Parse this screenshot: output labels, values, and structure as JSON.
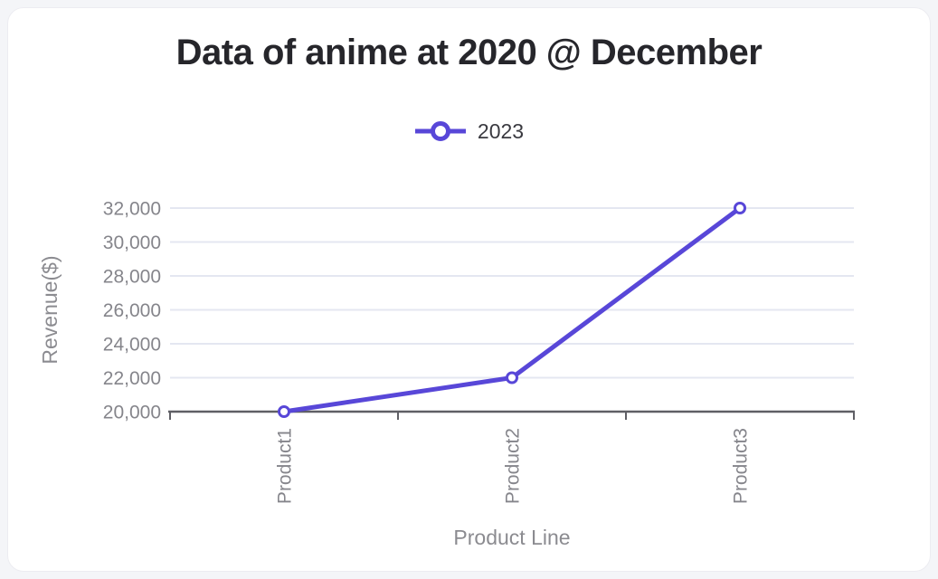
{
  "title": "Data of anime at 2020 @ December",
  "legend": {
    "items": [
      {
        "label": "2023",
        "color": "#5847d8"
      }
    ]
  },
  "chart_data": {
    "type": "line",
    "title": "Data of anime at 2020 @ December",
    "categories": [
      "Product1",
      "Product2",
      "Product3"
    ],
    "series": [
      {
        "name": "2023",
        "values": [
          20000,
          22000,
          32000
        ],
        "color": "#5847d8",
        "marker": "open-circle"
      }
    ],
    "xlabel": "Product Line",
    "ylabel": "Revenue($)",
    "ylim": [
      20000,
      32000
    ],
    "ytick_step": 2000,
    "ytick_labels": [
      "20,000",
      "22,000",
      "24,000",
      "26,000",
      "28,000",
      "30,000",
      "32,000"
    ],
    "xtick_label_rotation": -90,
    "grid": "horizontal",
    "legend_position": "top"
  },
  "colors": {
    "accent": "#5847d8",
    "grid_line": "#e4e7f1",
    "axis_line": "#5f5f65",
    "tick_text": "#85858b",
    "axis_title_text": "#8b8b90",
    "title_text": "#26262b",
    "legend_text": "#3a3a40",
    "marker_fill": "#ffffff",
    "card_bg": "#ffffff",
    "page_bg": "#f4f5f8"
  }
}
